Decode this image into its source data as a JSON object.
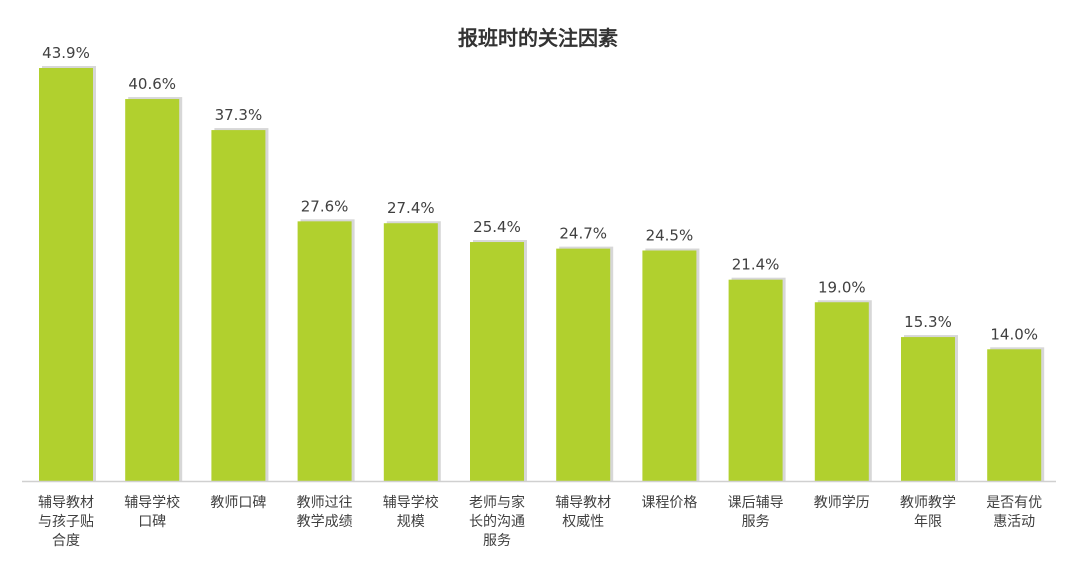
{
  "chart_data": {
    "type": "bar",
    "title": "报班时的关注因素",
    "xlabel": "",
    "ylabel": "",
    "ylim": [
      0,
      45
    ],
    "grid": false,
    "legend": "none",
    "bar_color": "#b1d02e",
    "categories": [
      [
        "辅导教材",
        "与孩子贴",
        "合度"
      ],
      [
        "辅导学校",
        "口碑"
      ],
      [
        "教师口碑"
      ],
      [
        "教师过往",
        "教学成绩"
      ],
      [
        "辅导学校",
        "规模"
      ],
      [
        "老师与家",
        "长的沟通",
        "服务"
      ],
      [
        "辅导教材",
        "权威性"
      ],
      [
        "课程价格"
      ],
      [
        "课后辅导",
        "服务"
      ],
      [
        "教师学历"
      ],
      [
        "教师教学",
        "年限"
      ],
      [
        "是否有优",
        "惠活动"
      ]
    ],
    "values": [
      43.9,
      40.6,
      37.3,
      27.6,
      27.4,
      25.4,
      24.7,
      24.5,
      21.4,
      19.0,
      15.3,
      14.0
    ],
    "value_labels": [
      "43.9%",
      "40.6%",
      "37.3%",
      "27.6%",
      "27.4%",
      "25.4%",
      "24.7%",
      "24.5%",
      "21.4%",
      "19.0%",
      "15.3%",
      "14.0%"
    ]
  }
}
